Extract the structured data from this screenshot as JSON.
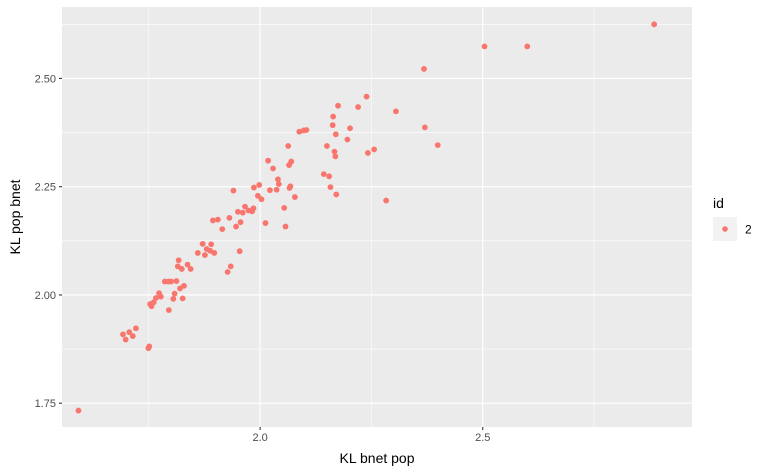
{
  "chart_data": {
    "type": "scatter",
    "title": "",
    "xlabel": "KL bnet pop",
    "ylabel": "KL pop bnet",
    "xlim": [
      1.555,
      2.97
    ],
    "ylim": [
      1.695,
      2.665
    ],
    "x_ticks": [
      2.0,
      2.5
    ],
    "x_tick_labels": [
      "2.0",
      "2.5"
    ],
    "y_ticks": [
      1.75,
      2.0,
      2.25,
      2.5
    ],
    "y_tick_labels": [
      "1.75",
      "2.00",
      "2.25",
      "2.50"
    ],
    "grid": true,
    "legend": {
      "title": "id",
      "position": "right",
      "entries": [
        {
          "label": "2",
          "color": "#F8766D"
        }
      ]
    },
    "series": [
      {
        "name": "2",
        "color": "#F8766D",
        "points": [
          [
            1.592,
            1.733
          ],
          [
            1.692,
            1.909
          ],
          [
            1.698,
            1.897
          ],
          [
            1.706,
            1.914
          ],
          [
            1.714,
            1.905
          ],
          [
            1.721,
            1.923
          ],
          [
            1.749,
            1.877
          ],
          [
            1.751,
            1.881
          ],
          [
            1.753,
            1.979
          ],
          [
            1.756,
            1.974
          ],
          [
            1.761,
            1.983
          ],
          [
            1.766,
            1.993
          ],
          [
            1.773,
            2.004
          ],
          [
            1.777,
            1.996
          ],
          [
            1.786,
            2.031
          ],
          [
            1.794,
            2.031
          ],
          [
            1.8,
            2.031
          ],
          [
            1.795,
            1.965
          ],
          [
            1.805,
            1.991
          ],
          [
            1.808,
            2.003
          ],
          [
            1.812,
            2.032
          ],
          [
            1.815,
            2.066
          ],
          [
            1.817,
            2.08
          ],
          [
            1.82,
            2.015
          ],
          [
            1.824,
            2.06
          ],
          [
            1.826,
            1.992
          ],
          [
            1.829,
            2.021
          ],
          [
            1.837,
            2.07
          ],
          [
            1.844,
            2.06
          ],
          [
            1.86,
            2.097
          ],
          [
            1.871,
            2.118
          ],
          [
            1.876,
            2.092
          ],
          [
            1.88,
            2.106
          ],
          [
            1.888,
            2.102
          ],
          [
            1.89,
            2.117
          ],
          [
            1.894,
            2.172
          ],
          [
            1.897,
            2.097
          ],
          [
            1.905,
            2.174
          ],
          [
            1.915,
            2.152
          ],
          [
            1.927,
            2.053
          ],
          [
            1.931,
            2.178
          ],
          [
            1.934,
            2.066
          ],
          [
            1.94,
            2.241
          ],
          [
            1.946,
            2.158
          ],
          [
            1.95,
            2.192
          ],
          [
            1.954,
            2.101
          ],
          [
            1.956,
            2.168
          ],
          [
            1.961,
            2.19
          ],
          [
            1.966,
            2.204
          ],
          [
            1.974,
            2.195
          ],
          [
            1.982,
            2.193
          ],
          [
            1.985,
            2.2
          ],
          [
            1.986,
            2.248
          ],
          [
            1.995,
            2.229
          ],
          [
            1.998,
            2.254
          ],
          [
            2.003,
            2.221
          ],
          [
            2.012,
            2.166
          ],
          [
            2.018,
            2.31
          ],
          [
            2.022,
            2.242
          ],
          [
            2.029,
            2.292
          ],
          [
            2.037,
            2.243
          ],
          [
            2.04,
            2.267
          ],
          [
            2.042,
            2.256
          ],
          [
            2.054,
            2.201
          ],
          [
            2.057,
            2.158
          ],
          [
            2.063,
            2.344
          ],
          [
            2.065,
            2.3
          ],
          [
            2.066,
            2.247
          ],
          [
            2.068,
            2.251
          ],
          [
            2.07,
            2.308
          ],
          [
            2.078,
            2.226
          ],
          [
            2.088,
            2.377
          ],
          [
            2.098,
            2.38
          ],
          [
            2.104,
            2.381
          ],
          [
            2.143,
            2.279
          ],
          [
            2.15,
            2.344
          ],
          [
            2.155,
            2.274
          ],
          [
            2.158,
            2.249
          ],
          [
            2.163,
            2.392
          ],
          [
            2.164,
            2.412
          ],
          [
            2.167,
            2.331
          ],
          [
            2.169,
            2.32
          ],
          [
            2.17,
            2.371
          ],
          [
            2.171,
            2.232
          ],
          [
            2.175,
            2.437
          ],
          [
            2.196,
            2.359
          ],
          [
            2.202,
            2.385
          ],
          [
            2.22,
            2.434
          ],
          [
            2.239,
            2.458
          ],
          [
            2.242,
            2.328
          ],
          [
            2.256,
            2.336
          ],
          [
            2.283,
            2.218
          ],
          [
            2.305,
            2.424
          ],
          [
            2.368,
            2.522
          ],
          [
            2.37,
            2.387
          ],
          [
            2.399,
            2.346
          ],
          [
            2.504,
            2.574
          ],
          [
            2.6,
            2.574
          ],
          [
            2.885,
            2.625
          ]
        ]
      }
    ]
  }
}
